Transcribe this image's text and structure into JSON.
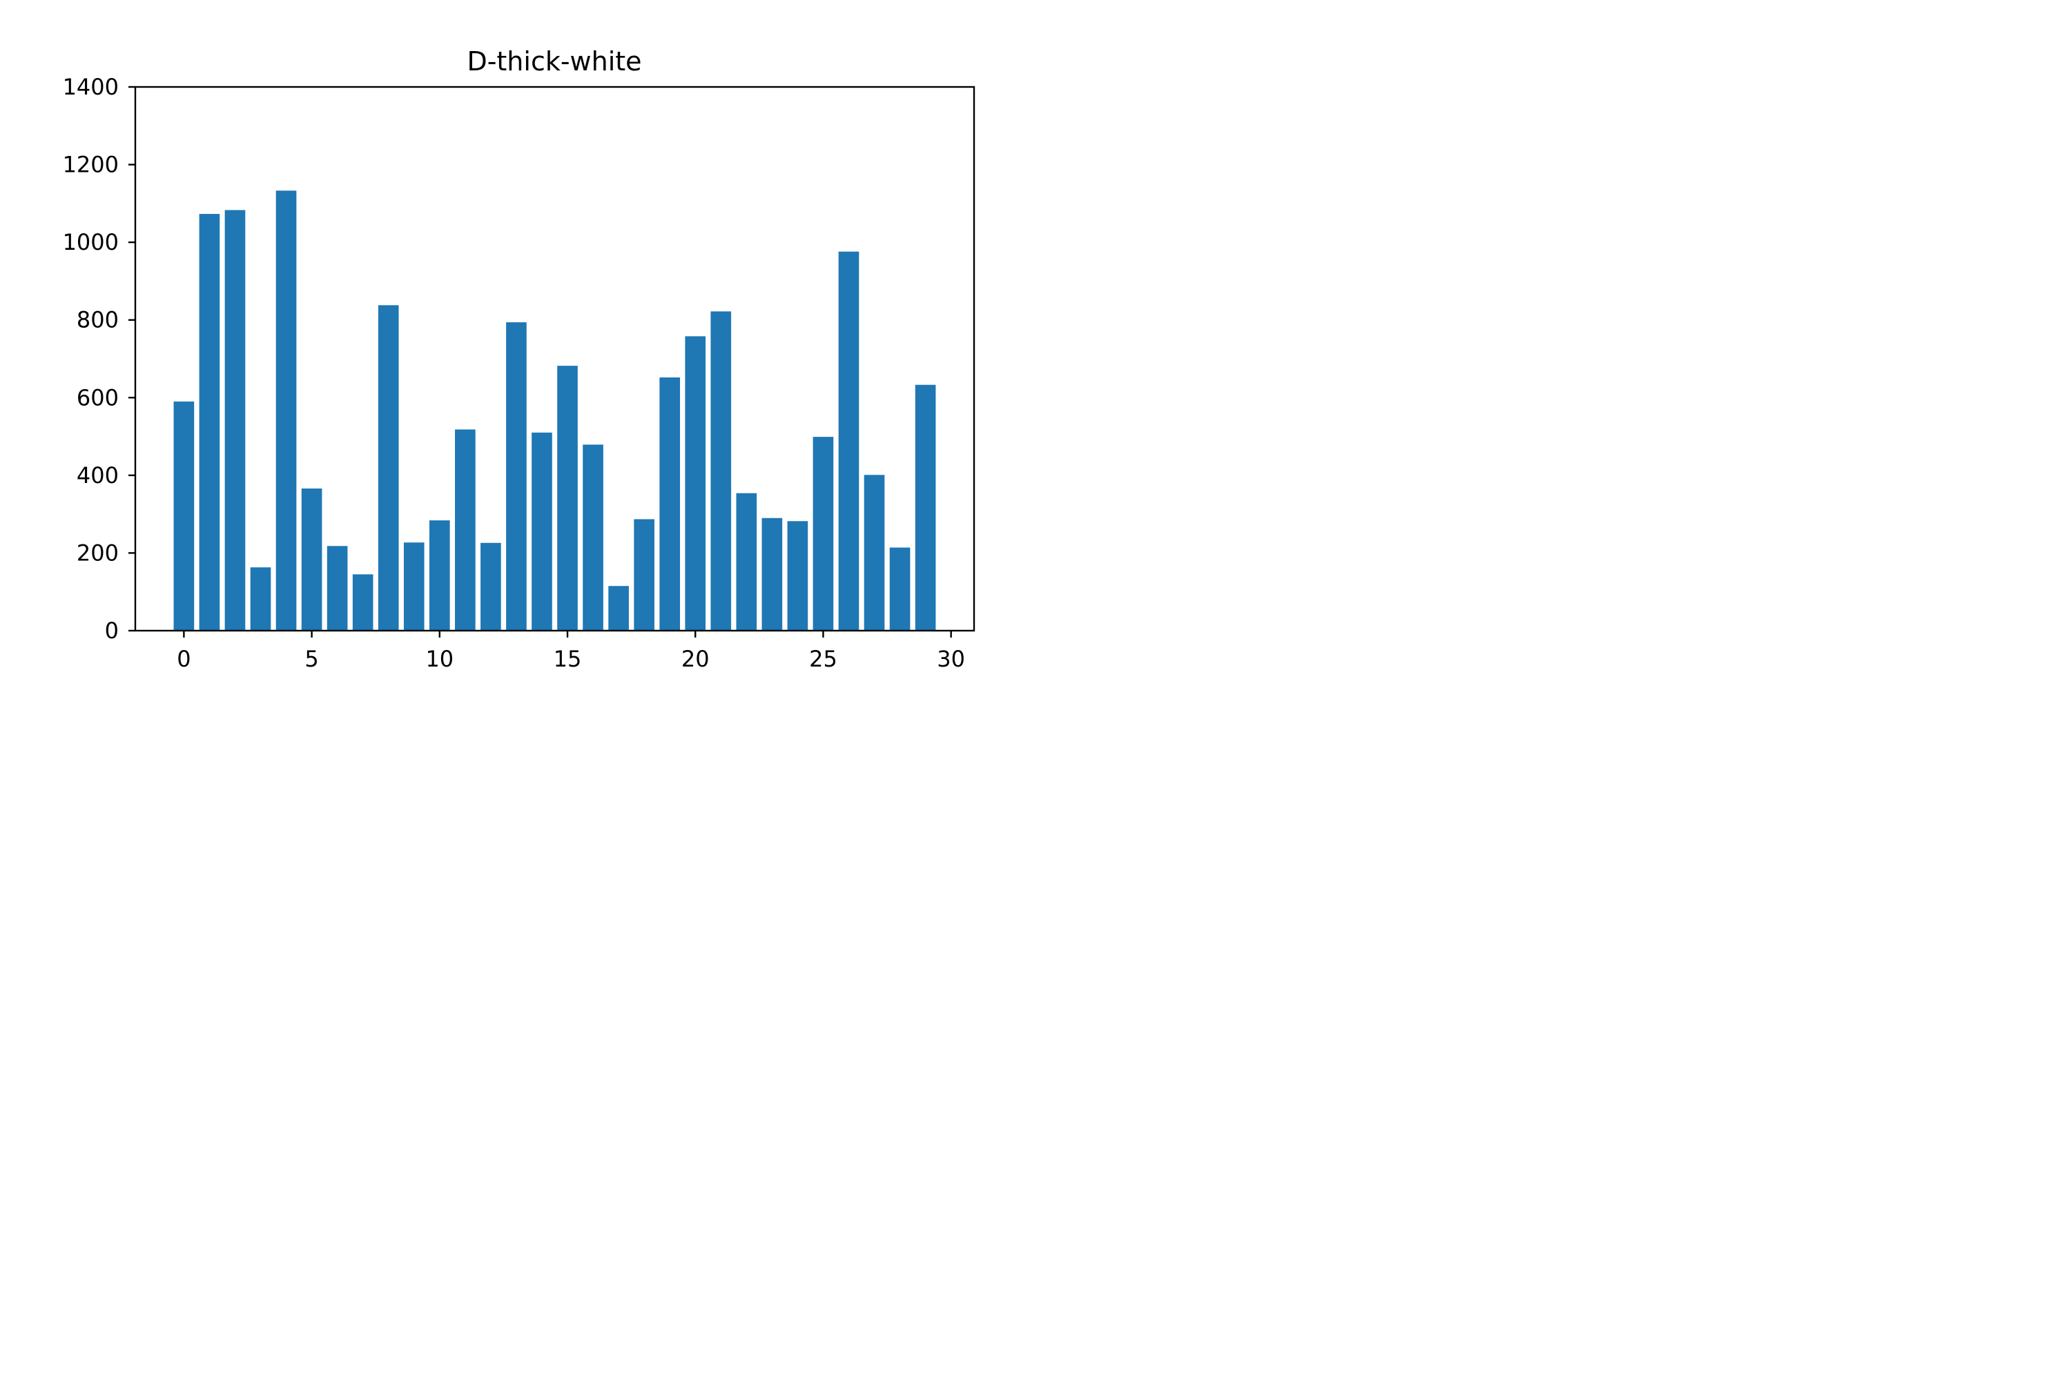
{
  "chart_data": {
    "type": "bar",
    "title": "D-thick-white",
    "xlabel": "",
    "ylabel": "",
    "x": [
      0,
      1,
      2,
      3,
      4,
      5,
      6,
      7,
      8,
      9,
      10,
      11,
      12,
      13,
      14,
      15,
      16,
      17,
      18,
      19,
      20,
      21,
      22,
      23,
      24,
      25,
      26,
      27,
      28,
      29
    ],
    "values": [
      590,
      1073,
      1083,
      163,
      1133,
      366,
      218,
      145,
      838,
      227,
      284,
      518,
      226,
      794,
      510,
      682,
      479,
      115,
      287,
      652,
      758,
      822,
      354,
      290,
      282,
      499,
      976,
      401,
      214,
      633
    ],
    "xlim": [
      -1.9,
      30.9
    ],
    "ylim": [
      0,
      1400
    ],
    "xticks": [
      0,
      5,
      10,
      15,
      20,
      25,
      30
    ],
    "yticks": [
      0,
      200,
      400,
      600,
      800,
      1000,
      1200,
      1400
    ],
    "bar_color": "#1f77b4",
    "grid": false,
    "legend": "none"
  }
}
